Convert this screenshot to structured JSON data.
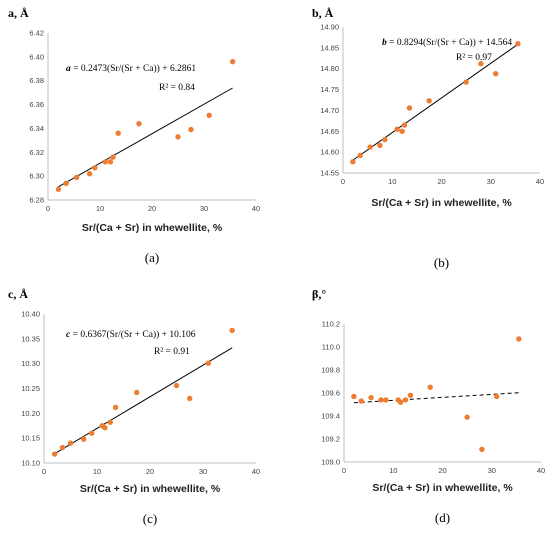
{
  "colors": {
    "point": "#ED7D31",
    "axis": "#bfbfbf",
    "trend": "#000000",
    "text": "#000000"
  },
  "chart_data": [
    {
      "type": "scatter",
      "panel": "(a)",
      "ylabel": "a, Å",
      "xlabel": "Sr/(Ca + Sr) in whewellite, %",
      "xlim": [
        0,
        40
      ],
      "ylim": [
        6.28,
        6.42
      ],
      "xticks": [
        0,
        10,
        20,
        30,
        40
      ],
      "yticks": [
        6.28,
        6.3,
        6.32,
        6.34,
        6.36,
        6.38,
        6.4,
        6.42
      ],
      "ydecimals": 2,
      "x": [
        2,
        3.5,
        5.5,
        8,
        9,
        11,
        12,
        12.5,
        13.5,
        17.5,
        25,
        27.5,
        31,
        35.5
      ],
      "y": [
        6.289,
        6.294,
        6.299,
        6.302,
        6.307,
        6.312,
        6.312,
        6.316,
        6.336,
        6.344,
        6.333,
        6.339,
        6.351,
        6.396
      ],
      "trendline": {
        "type": "linear",
        "style": "solid",
        "slope": 0.002473,
        "intercept": 6.2861,
        "x_range": [
          2,
          35.5
        ]
      },
      "equation": {
        "lhs": "a",
        "rhs": " = 0.2473(Sr/(Sr + Ca)) + 6.2861"
      },
      "r2": "R² = 0.84"
    },
    {
      "type": "scatter",
      "panel": "(b)",
      "ylabel": "b, Å",
      "xlabel": "Sr/(Ca + Sr) in whewellite, %",
      "xlim": [
        0,
        40
      ],
      "ylim": [
        14.55,
        14.9
      ],
      "xticks": [
        0,
        10,
        20,
        30,
        40
      ],
      "yticks": [
        14.55,
        14.6,
        14.65,
        14.7,
        14.75,
        14.8,
        14.85,
        14.9
      ],
      "ydecimals": 2,
      "x": [
        2,
        3.5,
        5.5,
        7.5,
        8.5,
        11,
        12,
        12.5,
        13.5,
        17.5,
        25,
        28,
        31,
        35.5
      ],
      "y": [
        14.577,
        14.592,
        14.612,
        14.616,
        14.63,
        14.655,
        14.65,
        14.665,
        14.706,
        14.723,
        14.768,
        14.812,
        14.788,
        14.86
      ],
      "trendline": {
        "type": "linear",
        "style": "solid",
        "slope": 0.008294,
        "intercept": 14.564,
        "x_range": [
          2,
          35.5
        ]
      },
      "equation": {
        "lhs": "b",
        "rhs": " = 0.8294(Sr/(Sr + Ca)) + 14.564"
      },
      "r2": "R² = 0.97"
    },
    {
      "type": "scatter",
      "panel": "(c)",
      "ylabel": "c, Å",
      "xlabel": "Sr/(Ca + Sr) in whewellite, %",
      "xlim": [
        0,
        40
      ],
      "ylim": [
        10.1,
        10.4
      ],
      "xticks": [
        0,
        10,
        20,
        30,
        40
      ],
      "yticks": [
        10.1,
        10.15,
        10.2,
        10.25,
        10.3,
        10.35,
        10.4
      ],
      "ydecimals": 2,
      "x": [
        2,
        3.5,
        5,
        7.5,
        9,
        11,
        11.5,
        12.5,
        13.5,
        17.5,
        25,
        27.5,
        31,
        35.5
      ],
      "y": [
        10.118,
        10.131,
        10.14,
        10.148,
        10.16,
        10.175,
        10.171,
        10.182,
        10.212,
        10.242,
        10.256,
        10.23,
        10.301,
        10.367
      ],
      "trendline": {
        "type": "linear",
        "style": "solid",
        "slope": 0.006367,
        "intercept": 10.106,
        "x_range": [
          2,
          35.5
        ]
      },
      "equation": {
        "lhs": "c",
        "rhs": " = 0.6367(Sr/(Sr + Ca)) + 10.106"
      },
      "r2": "R² = 0.91"
    },
    {
      "type": "scatter",
      "panel": "(d)",
      "ylabel": "β,°",
      "xlabel": "Sr/(Ca + Sr) in whewellite, %",
      "xlim": [
        0,
        40
      ],
      "ylim": [
        109.0,
        110.2
      ],
      "xticks": [
        0,
        10,
        20,
        30,
        40
      ],
      "yticks": [
        109.0,
        109.2,
        109.4,
        109.6,
        109.8,
        110.0,
        110.2
      ],
      "ydecimals": 1,
      "x": [
        2,
        3.5,
        5.5,
        7.5,
        8.5,
        11,
        11.5,
        12.5,
        13.5,
        17.5,
        25,
        28,
        31,
        35.5
      ],
      "y": [
        109.57,
        109.53,
        109.56,
        109.54,
        109.54,
        109.54,
        109.52,
        109.54,
        109.58,
        109.65,
        109.39,
        109.11,
        109.57,
        110.07
      ],
      "trendline": {
        "type": "linear",
        "style": "dashed",
        "slope": 0.0026,
        "intercept": 109.51,
        "x_range": [
          2,
          35.5
        ]
      },
      "equation": null,
      "r2": null
    }
  ]
}
